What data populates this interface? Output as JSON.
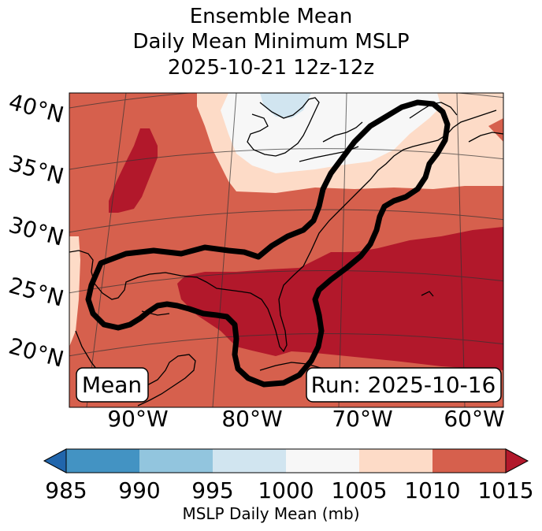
{
  "title": {
    "line1": "Ensemble Mean",
    "line2": "Daily Mean Minimum MSLP",
    "line3": "2025-10-21 12z-12z"
  },
  "map": {
    "lat_labels": [
      "40°N",
      "35°N",
      "30°N",
      "25°N",
      "20°N"
    ],
    "lon_labels": [
      "90°W",
      "80°W",
      "70°W",
      "60°W"
    ],
    "left_box": "Mean",
    "right_box": "Run: 2025-10-16"
  },
  "colorbar": {
    "ticks": [
      "985",
      "990",
      "995",
      "1000",
      "1005",
      "1010",
      "1015"
    ],
    "colors": [
      "#2166ac",
      "#4393c3",
      "#92c5de",
      "#d1e5f0",
      "#f7f7f7",
      "#fddbc7",
      "#d6604d",
      "#b2182b"
    ],
    "label": "MSLP Daily Mean (mb)"
  }
}
